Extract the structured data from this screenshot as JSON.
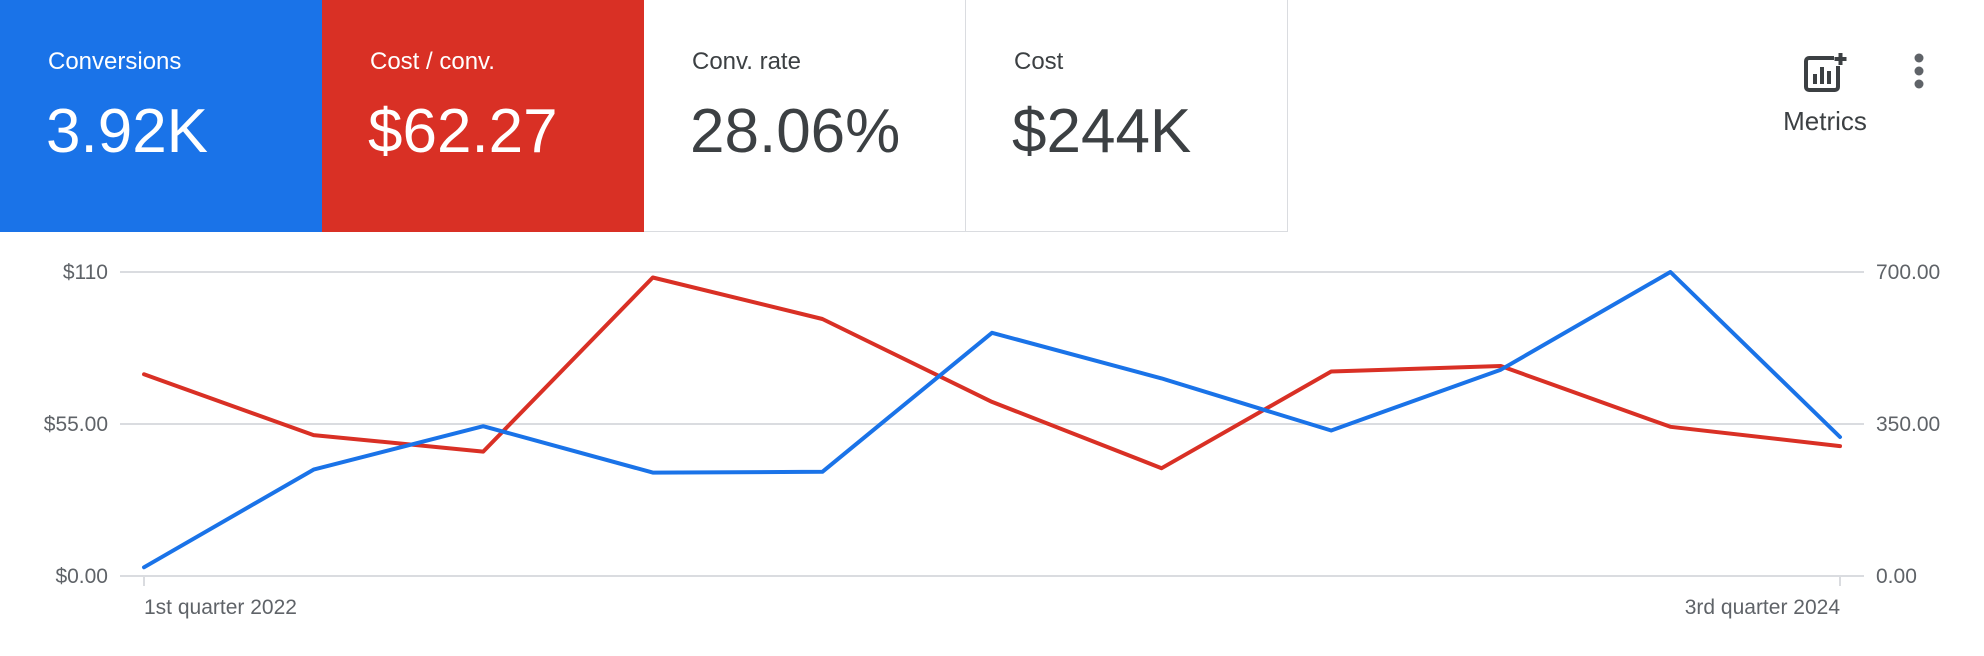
{
  "scorecards": [
    {
      "label": "Conversions",
      "value": "3.92K"
    },
    {
      "label": "Cost / conv.",
      "value": "$62.27"
    },
    {
      "label": "Conv. rate",
      "value": "28.06%"
    },
    {
      "label": "Cost",
      "value": "$244K"
    }
  ],
  "toolbar": {
    "metrics_label": "Metrics",
    "metrics_icon": "add-chart-icon",
    "more_icon": "more-vert-icon"
  },
  "colors": {
    "conversions": "#1a73e8",
    "cost_per_conv": "#d93025",
    "grid": "#dadce0"
  },
  "chart_data": {
    "type": "line",
    "x": [
      "1st quarter 2022",
      "",
      "",
      "",
      "",
      "",
      "",
      "",
      "",
      "",
      "3rd quarter 2024"
    ],
    "x_tick_labels": [
      "1st quarter 2022",
      "3rd quarter 2024"
    ],
    "left_axis": {
      "ticks": [
        "$0.00",
        "$55.00",
        "$110"
      ],
      "range": [
        0,
        110
      ]
    },
    "right_axis": {
      "ticks": [
        "0.00",
        "350.00",
        "700.00"
      ],
      "range": [
        0,
        700
      ]
    },
    "grid": true,
    "series": [
      {
        "name": "Conversions",
        "axis": "right",
        "color": "#1a73e8",
        "values": [
          20,
          245,
          345,
          238,
          240,
          560,
          455,
          335,
          475,
          700,
          320
        ]
      },
      {
        "name": "Cost / conv.",
        "axis": "left",
        "color": "#d93025",
        "values": [
          73,
          51,
          45,
          108,
          93,
          63,
          39,
          74,
          76,
          54,
          47
        ]
      }
    ]
  }
}
